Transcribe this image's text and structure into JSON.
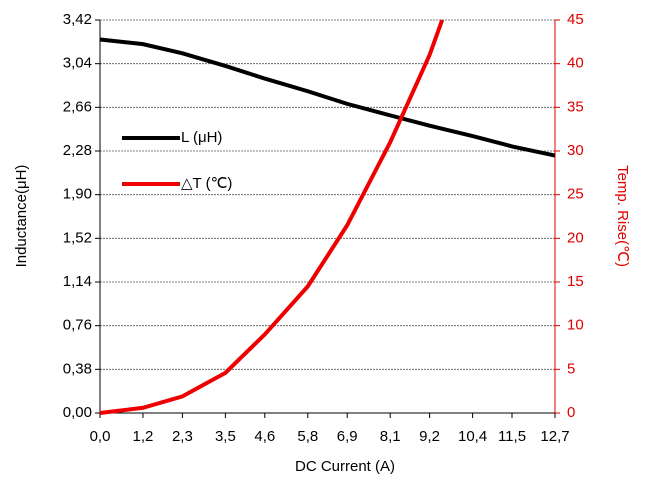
{
  "chart_data": {
    "type": "line",
    "xlabel": "DC Current (A)",
    "ylabel": "Inductance(μH)",
    "y2label": "Temp. Rise(℃)",
    "xlim": [
      0,
      12.7
    ],
    "xticks": [
      {
        "value": 0,
        "label": "0,0"
      },
      {
        "value": 1.2,
        "label": "1,2"
      },
      {
        "value": 2.3,
        "label": "2,3"
      },
      {
        "value": 3.5,
        "label": "3,5"
      },
      {
        "value": 4.6,
        "label": "4,6"
      },
      {
        "value": 5.8,
        "label": "5,8"
      },
      {
        "value": 6.9,
        "label": "6,9"
      },
      {
        "value": 8.1,
        "label": "8,1"
      },
      {
        "value": 9.2,
        "label": "9,2"
      },
      {
        "value": 10.4,
        "label": "10,4"
      },
      {
        "value": 11.5,
        "label": "11,5"
      },
      {
        "value": 12.7,
        "label": "12,7"
      }
    ],
    "ylim": [
      0,
      3.42
    ],
    "yticks": [
      {
        "value": 0,
        "label": "0,00"
      },
      {
        "value": 0.38,
        "label": "0,38"
      },
      {
        "value": 0.76,
        "label": "0,76"
      },
      {
        "value": 1.14,
        "label": "1,14"
      },
      {
        "value": 1.52,
        "label": "1,52"
      },
      {
        "value": 1.9,
        "label": "1,90"
      },
      {
        "value": 2.28,
        "label": "2,28"
      },
      {
        "value": 2.66,
        "label": "2,66"
      },
      {
        "value": 3.04,
        "label": "3,04"
      },
      {
        "value": 3.42,
        "label": "3,42"
      }
    ],
    "y2lim": [
      0,
      45
    ],
    "y2ticks": [
      0,
      5,
      10,
      15,
      20,
      25,
      30,
      35,
      40,
      45
    ],
    "grid": true,
    "legend": "upper left",
    "series": [
      {
        "name": "L (μH)",
        "color": "#000000",
        "x": [
          0,
          1.2,
          2.3,
          3.5,
          4.6,
          5.8,
          6.9,
          8.1,
          9.2,
          10.4,
          11.5,
          12.7
        ],
        "values": [
          3.25,
          3.21,
          3.13,
          3.02,
          2.91,
          2.8,
          2.69,
          2.59,
          2.5,
          2.41,
          2.32,
          2.24
        ]
      },
      {
        "name": "△T (℃)",
        "color": "#ee0000",
        "axis": "y2",
        "x": [
          0,
          1.2,
          2.3,
          3.5,
          4.6,
          5.8,
          6.9,
          8.1,
          9.2,
          9.55
        ],
        "values": [
          0,
          0.6,
          1.9,
          4.6,
          9,
          14.5,
          21.5,
          31,
          41,
          45
        ]
      }
    ]
  }
}
